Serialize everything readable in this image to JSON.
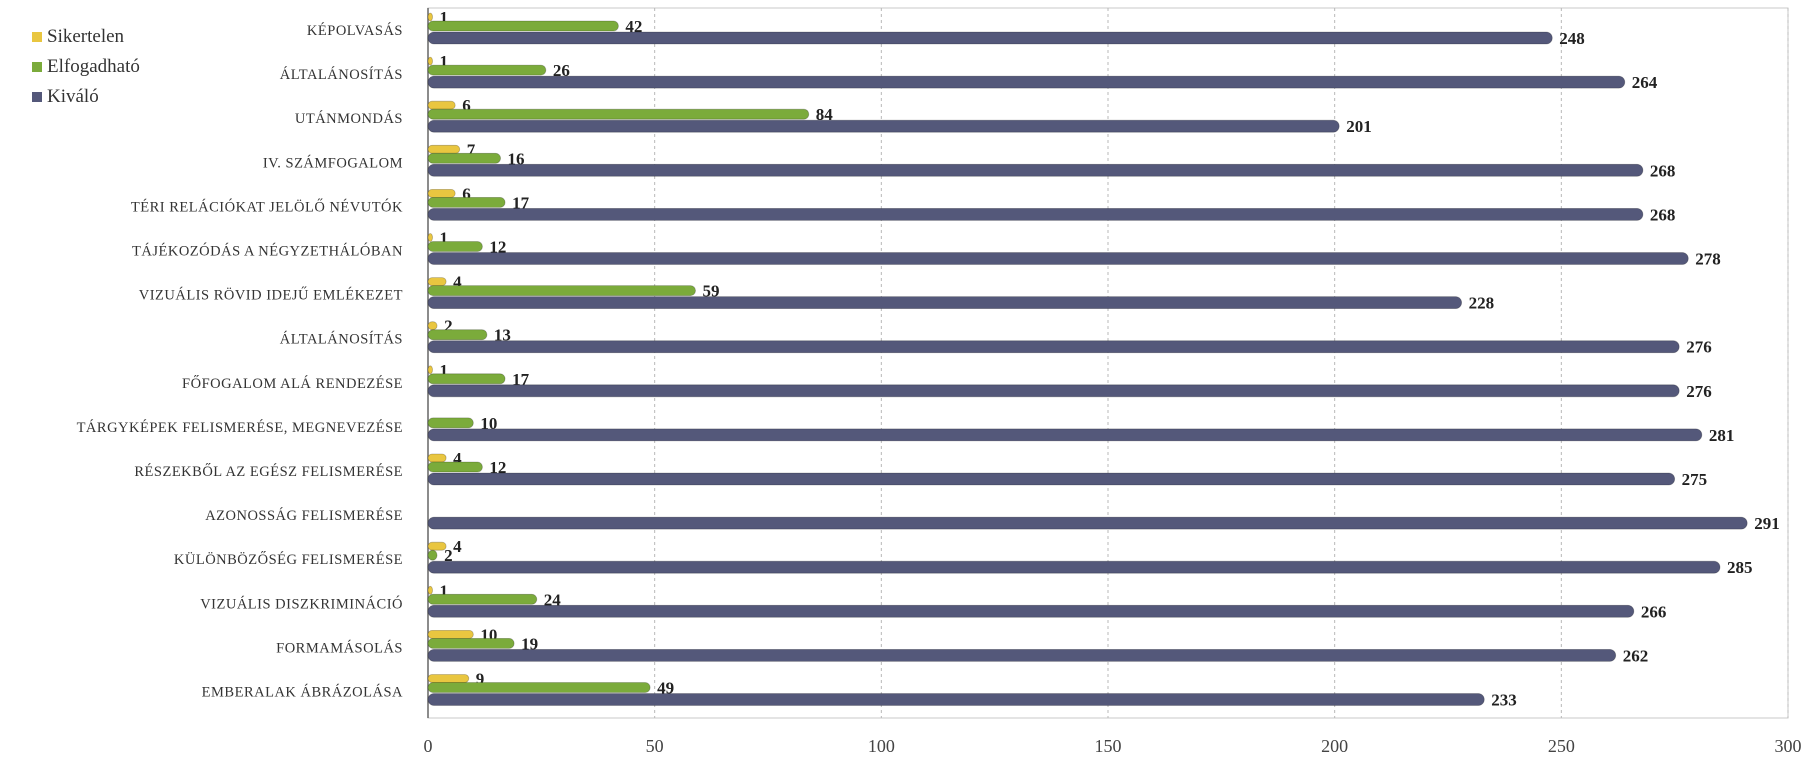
{
  "chart_data": {
    "type": "bar",
    "orientation": "horizontal",
    "categories": [
      "KÉPOLVASÁS",
      "ÁLTALÁNOSÍTÁS",
      "UTÁNMONDÁS",
      "IV. SZÁMFOGALOM",
      "TÉRI RELÁCIÓKAT JELÖLŐ NÉVUTÓK",
      "TÁJÉKOZÓDÁS A NÉGYZETHÁLÓBAN",
      "VIZUÁLIS RÖVID IDEJŰ EMLÉKEZET",
      "ÁLTALÁNOSÍTÁS",
      "FŐFOGALOM ALÁ RENDEZÉSE",
      "TÁRGYKÉPEK FELISMERÉSE, MEGNEVEZÉSE",
      "RÉSZEKBŐL AZ EGÉSZ FELISMERÉSE",
      "AZONOSSÁG FELISMERÉSE",
      "KÜLÖNBÖZŐSÉG FELISMERÉSE",
      "VIZUÁLIS DISZKRIMINÁCIÓ",
      "FORMAMÁSOLÁS",
      "EMBERALAK ÁBRÁZOLÁSA"
    ],
    "series": [
      {
        "name": "Sikertelen",
        "color": "#e9c640",
        "values": [
          1,
          1,
          6,
          7,
          6,
          1,
          4,
          2,
          1,
          null,
          4,
          null,
          4,
          1,
          10,
          9
        ]
      },
      {
        "name": "Elfogadható",
        "color": "#7bab3b",
        "values": [
          42,
          26,
          84,
          16,
          17,
          12,
          59,
          13,
          17,
          10,
          12,
          null,
          2,
          24,
          19,
          49
        ]
      },
      {
        "name": "Kiváló",
        "color": "#54587a",
        "values": [
          248,
          264,
          201,
          268,
          268,
          278,
          228,
          276,
          276,
          281,
          275,
          291,
          285,
          266,
          262,
          233
        ]
      }
    ],
    "xticks": [
      "0",
      "50",
      "100",
      "150",
      "200",
      "250",
      "300"
    ],
    "xlim": [
      0,
      300
    ],
    "grid": true,
    "legend_position": "top-left",
    "title": "",
    "xlabel": "",
    "ylabel": ""
  }
}
